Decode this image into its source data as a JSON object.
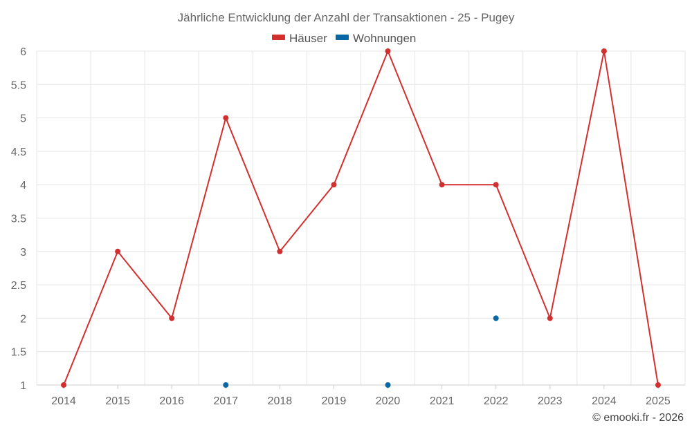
{
  "chart_data": {
    "type": "line",
    "title": "Jährliche Entwicklung der Anzahl der Transaktionen - 25 - Pugey",
    "categories": [
      "2014",
      "2015",
      "2016",
      "2017",
      "2018",
      "2019",
      "2020",
      "2021",
      "2022",
      "2023",
      "2024",
      "2025"
    ],
    "ylim": [
      1,
      6
    ],
    "yticks": [
      "1",
      "1.5",
      "2",
      "2.5",
      "3",
      "3.5",
      "4",
      "4.5",
      "5",
      "5.5",
      "6"
    ],
    "grid": true,
    "legend_position": "top-center",
    "series": [
      {
        "name": "Häuser",
        "color": "#d32f2f",
        "line": true,
        "values": [
          1,
          3,
          2,
          5,
          3,
          4,
          6,
          4,
          4,
          2,
          6,
          1
        ]
      },
      {
        "name": "Wohnungen",
        "color": "#0868a6",
        "line": false,
        "values": [
          null,
          null,
          null,
          1,
          null,
          null,
          1,
          null,
          2,
          null,
          null,
          null
        ]
      }
    ]
  },
  "credit": "© emooki.fr - 2026"
}
